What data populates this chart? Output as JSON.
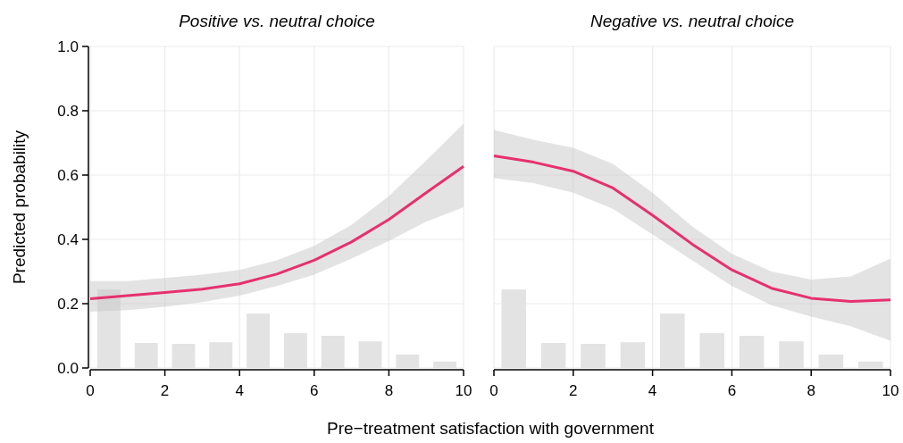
{
  "chart_data": [
    {
      "type": "line",
      "title": "Positive vs. neutral choice",
      "ylabel": "Predicted probability",
      "xlabel": "Pre−treatment satisfaction with government",
      "x": [
        0,
        1,
        2,
        3,
        4,
        5,
        6,
        7,
        8,
        9,
        10
      ],
      "xlim": [
        0,
        10
      ],
      "xticks": [
        0,
        2,
        4,
        6,
        8,
        10
      ],
      "ylim": [
        0,
        1
      ],
      "yticks": [
        {
          "value": 0,
          "label": "0.0"
        },
        {
          "value": 0.2,
          "label": "0.2"
        },
        {
          "value": 0.4,
          "label": "0.4"
        },
        {
          "value": 0.6,
          "label": "0.6"
        },
        {
          "value": 0.8,
          "label": "0.8"
        },
        {
          "value": 1,
          "label": "1.0"
        }
      ],
      "grid": true,
      "series": [
        {
          "type": "bar",
          "color": "#e3e3e3",
          "x": [
            0.5,
            1.5,
            2.5,
            3.5,
            4.5,
            5.5,
            6.5,
            7.5,
            8.5,
            9.5
          ],
          "values": [
            0.244,
            0.078,
            0.075,
            0.08,
            0.169,
            0.108,
            0.1,
            0.083,
            0.042,
            0.02
          ]
        },
        {
          "color": "#e6306f",
          "values": [
            0.215,
            0.225,
            0.235,
            0.245,
            0.262,
            0.292,
            0.335,
            0.392,
            0.462,
            0.545,
            0.627
          ],
          "lower": [
            0.175,
            0.18,
            0.19,
            0.205,
            0.225,
            0.255,
            0.29,
            0.34,
            0.395,
            0.455,
            0.5
          ],
          "upper": [
            0.27,
            0.27,
            0.28,
            0.29,
            0.305,
            0.335,
            0.38,
            0.445,
            0.535,
            0.645,
            0.76
          ]
        }
      ]
    },
    {
      "type": "line",
      "title": "Negative vs. neutral choice",
      "x": [
        0,
        1,
        2,
        3,
        4,
        5,
        6,
        7,
        8,
        9,
        10
      ],
      "xlim": [
        0,
        10
      ],
      "xticks": [
        0,
        2,
        4,
        6,
        8,
        10
      ],
      "ylim": [
        0,
        1
      ],
      "yticks": [
        0,
        0.2,
        0.4,
        0.6,
        0.8,
        1
      ],
      "tick_labels": "x",
      "grid": true,
      "series": [
        {
          "type": "bar",
          "color": "#e3e3e3",
          "x": [
            0.5,
            1.5,
            2.5,
            3.5,
            4.5,
            5.5,
            6.5,
            7.5,
            8.5,
            9.5
          ],
          "values": [
            0.244,
            0.078,
            0.075,
            0.08,
            0.169,
            0.108,
            0.1,
            0.083,
            0.042,
            0.02
          ]
        },
        {
          "color": "#e6306f",
          "values": [
            0.66,
            0.64,
            0.612,
            0.56,
            0.475,
            0.385,
            0.305,
            0.248,
            0.217,
            0.207,
            0.212
          ],
          "lower": [
            0.59,
            0.575,
            0.545,
            0.495,
            0.415,
            0.335,
            0.255,
            0.195,
            0.16,
            0.13,
            0.085
          ],
          "upper": [
            0.74,
            0.71,
            0.685,
            0.635,
            0.545,
            0.44,
            0.355,
            0.3,
            0.275,
            0.285,
            0.34
          ]
        }
      ]
    }
  ]
}
